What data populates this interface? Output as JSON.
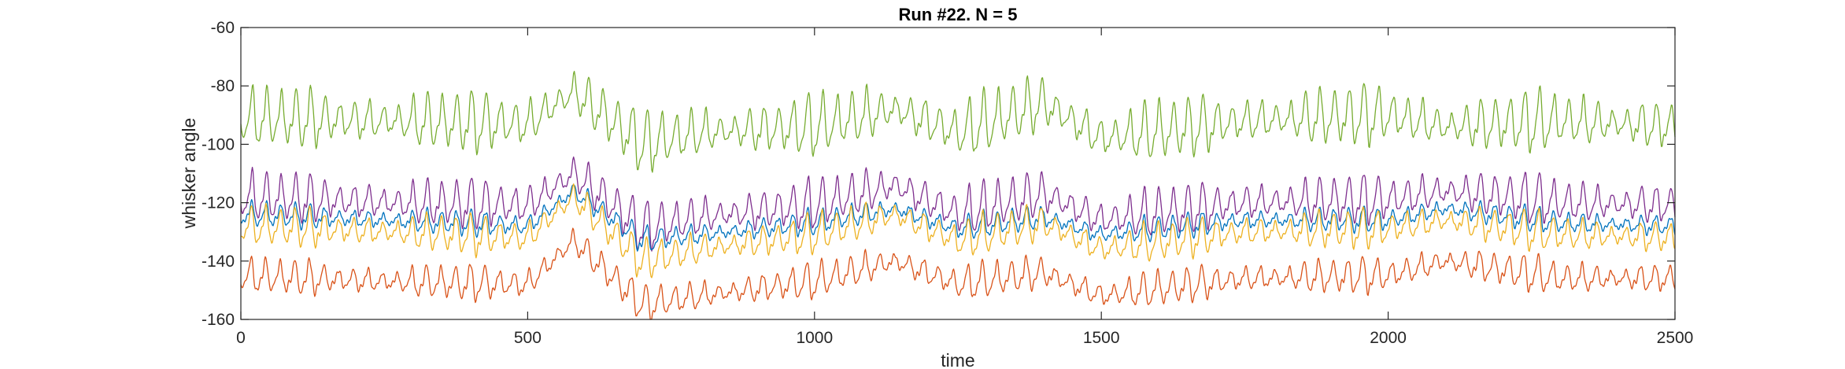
{
  "chart_data": {
    "type": "line",
    "title": "Run #22. N = 5",
    "xlabel": "time",
    "ylabel": "whisker angle",
    "xlim": [
      0,
      2500
    ],
    "ylim": [
      -160,
      -60
    ],
    "xticks": [
      0,
      500,
      1000,
      1500,
      2000,
      2500
    ],
    "yticks": [
      -160,
      -140,
      -120,
      -100,
      -80,
      -60
    ],
    "xtick_labels": [
      "0",
      "500",
      "1000",
      "1500",
      "2000",
      "2500"
    ],
    "ytick_labels": [
      "-160",
      "-140",
      "-120",
      "-100",
      "-80",
      "-60"
    ],
    "grid": false,
    "legend": "none",
    "series": [
      {
        "color": "#77AC30",
        "baseline": -92,
        "amplitude": 8.5,
        "x": [
          0,
          250,
          500,
          580,
          700,
          800,
          1000,
          1140,
          1250,
          1400,
          1500,
          1750,
          2000,
          2100,
          2300,
          2500
        ],
        "y": [
          -91,
          -92,
          -93,
          -82,
          -100,
          -96,
          -94,
          -88,
          -96,
          -86,
          -98,
          -92,
          -90,
          -94,
          -92,
          -94
        ]
      },
      {
        "color": "#7E2F8E",
        "baseline": -120,
        "amplitude": 7,
        "x": [
          0,
          250,
          500,
          580,
          700,
          800,
          1000,
          1140,
          1250,
          1400,
          1500,
          1750,
          2000,
          2100,
          2300,
          2500
        ],
        "y": [
          -118,
          -120,
          -121,
          -110,
          -129,
          -125,
          -121,
          -114,
          -124,
          -117,
          -126,
          -120,
          -119,
          -116,
          -120,
          -121
        ]
      },
      {
        "color": "#0072BD",
        "baseline": -127,
        "amplitude": 3.5,
        "x": [
          0,
          250,
          500,
          580,
          700,
          800,
          1000,
          1140,
          1250,
          1400,
          1500,
          1750,
          2000,
          2100,
          2300,
          2500
        ],
        "y": [
          -124,
          -126,
          -128,
          -116,
          -133,
          -131,
          -127,
          -122,
          -129,
          -125,
          -131,
          -126,
          -126,
          -122,
          -127,
          -128
        ]
      },
      {
        "color": "#EDB120",
        "baseline": -130,
        "amplitude": 5.5,
        "x": [
          0,
          250,
          500,
          580,
          700,
          800,
          1000,
          1140,
          1250,
          1400,
          1500,
          1750,
          2000,
          2100,
          2300,
          2500
        ],
        "y": [
          -128,
          -130,
          -132,
          -118,
          -140,
          -136,
          -131,
          -124,
          -133,
          -127,
          -136,
          -130,
          -129,
          -126,
          -131,
          -132
        ]
      },
      {
        "color": "#D95319",
        "baseline": -146,
        "amplitude": 5,
        "x": [
          0,
          250,
          500,
          580,
          700,
          800,
          1000,
          1140,
          1250,
          1400,
          1500,
          1750,
          2000,
          2100,
          2300,
          2500
        ],
        "y": [
          -145,
          -147,
          -148,
          -133,
          -155,
          -152,
          -147,
          -140,
          -148,
          -144,
          -152,
          -146,
          -145,
          -140,
          -146,
          -146
        ]
      }
    ]
  }
}
